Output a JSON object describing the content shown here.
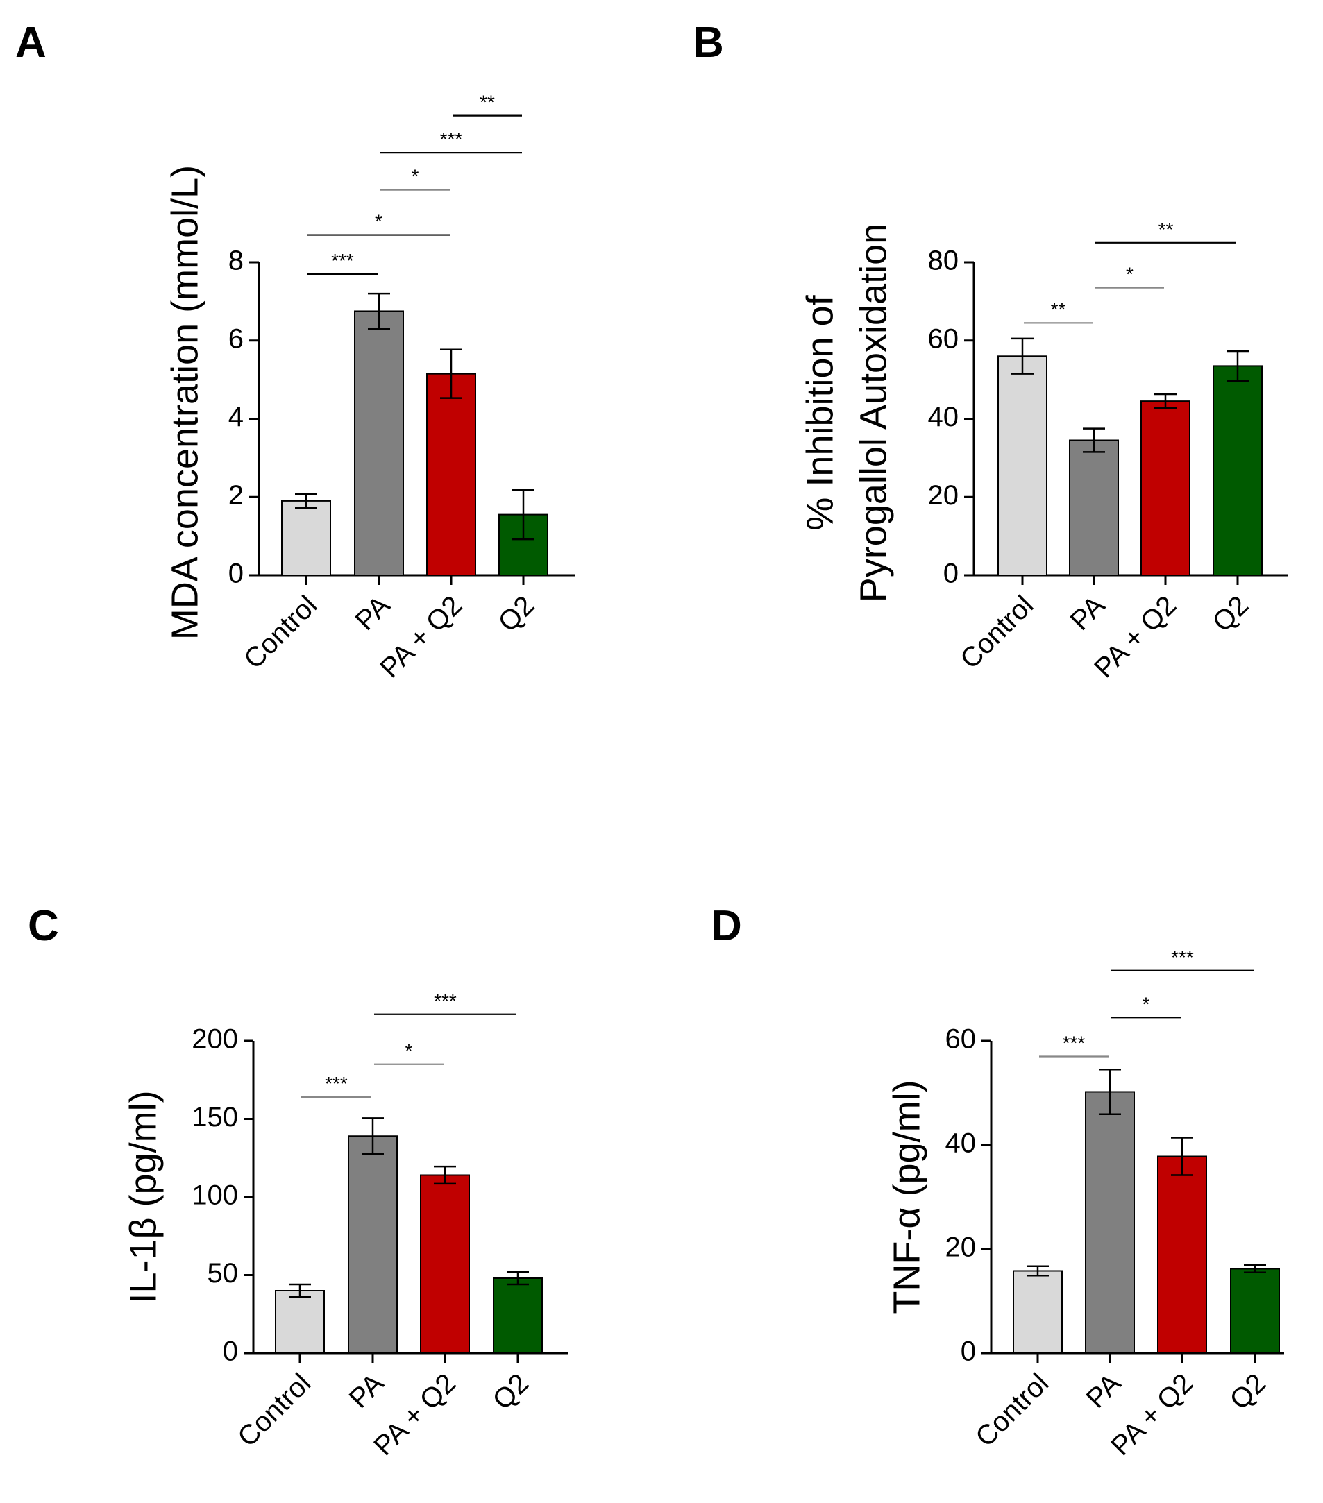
{
  "chart_data": [
    {
      "panel": "A",
      "type": "bar",
      "title": "",
      "ylabel": [
        "MDA concentration (mmol/L)"
      ],
      "xlabel": "",
      "categories": [
        "Control",
        "PA",
        "PA + Q2",
        "Q2"
      ],
      "values": [
        1.9,
        6.75,
        5.15,
        1.55
      ],
      "errors": [
        0.18,
        0.45,
        0.62,
        0.63
      ],
      "colors": [
        "#d9d9d9",
        "#808080",
        "#c00000",
        "#005a00"
      ],
      "ylim": [
        0,
        8
      ],
      "yticks": [
        0,
        2,
        4,
        6,
        8
      ],
      "significance": [
        {
          "from": 0,
          "to": 1,
          "label": "***",
          "level": 7.7
        },
        {
          "from": 0,
          "to": 2,
          "label": "*",
          "level": 8.7
        },
        {
          "from": 1,
          "to": 2,
          "label": "*",
          "level": 9.85
        },
        {
          "from": 1,
          "to": 3,
          "label": "***",
          "level": 10.8
        },
        {
          "from": 2,
          "to": 3,
          "label": "**",
          "level": 11.75
        }
      ]
    },
    {
      "panel": "B",
      "type": "bar",
      "title": "",
      "ylabel": [
        "% Inhibition of",
        "Pyrogallol Autoxidation"
      ],
      "xlabel": "",
      "categories": [
        "Control",
        "PA",
        "PA + Q2",
        "Q2"
      ],
      "values": [
        56,
        34.5,
        44.5,
        53.5
      ],
      "errors": [
        4.5,
        3,
        1.8,
        3.8
      ],
      "colors": [
        "#d9d9d9",
        "#808080",
        "#c00000",
        "#005a00"
      ],
      "ylim": [
        0,
        80
      ],
      "yticks": [
        0,
        20,
        40,
        60,
        80
      ],
      "significance": [
        {
          "from": 0,
          "to": 1,
          "label": "**",
          "level": 64.5
        },
        {
          "from": 1,
          "to": 2,
          "label": "*",
          "level": 73.5
        },
        {
          "from": 1,
          "to": 3,
          "label": "**",
          "level": 85
        }
      ]
    },
    {
      "panel": "C",
      "type": "bar",
      "title": "",
      "ylabel": [
        "IL-1β (pg/ml)"
      ],
      "xlabel": "",
      "categories": [
        "Control",
        "PA",
        "PA + Q2",
        "Q2"
      ],
      "values": [
        40,
        139,
        114,
        48
      ],
      "errors": [
        4,
        11.5,
        5.5,
        4
      ],
      "colors": [
        "#d9d9d9",
        "#808080",
        "#c00000",
        "#005a00"
      ],
      "ylim": [
        0,
        200
      ],
      "yticks": [
        0,
        50,
        100,
        150,
        200
      ],
      "significance": [
        {
          "from": 0,
          "to": 1,
          "label": "***",
          "level": 164
        },
        {
          "from": 1,
          "to": 2,
          "label": "*",
          "level": 185
        },
        {
          "from": 1,
          "to": 3,
          "label": "***",
          "level": 217
        }
      ]
    },
    {
      "panel": "D",
      "type": "bar",
      "title": "",
      "ylabel": [
        "TNF-α (pg/ml)"
      ],
      "xlabel": "",
      "categories": [
        "Control",
        "PA",
        "PA + Q2",
        "Q2"
      ],
      "values": [
        15.8,
        50.2,
        37.8,
        16.2
      ],
      "errors": [
        0.9,
        4.3,
        3.6,
        0.7
      ],
      "colors": [
        "#d9d9d9",
        "#808080",
        "#c00000",
        "#005a00"
      ],
      "ylim": [
        0,
        60
      ],
      "yticks": [
        0,
        20,
        40,
        60
      ],
      "significance": [
        {
          "from": 0,
          "to": 1,
          "label": "***",
          "level": 57
        },
        {
          "from": 1,
          "to": 2,
          "label": "*",
          "level": 64.5
        },
        {
          "from": 1,
          "to": 3,
          "label": "***",
          "level": 73.5
        }
      ]
    }
  ]
}
